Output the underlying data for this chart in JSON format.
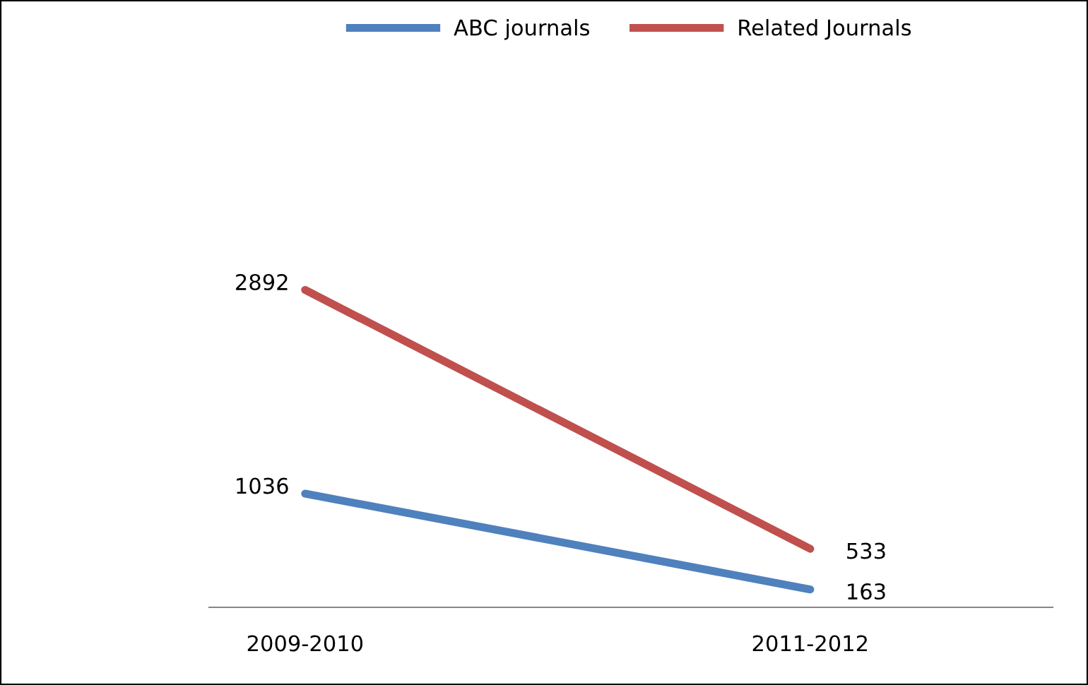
{
  "chart_data": {
    "type": "line",
    "categories": [
      "2009-2010",
      "2011-2012"
    ],
    "series": [
      {
        "name": "ABC journals",
        "color": "#4f81bd",
        "values": [
          1036,
          163
        ]
      },
      {
        "name": "Related Journals",
        "color": "#c0504d",
        "values": [
          2892,
          533
        ]
      }
    ],
    "tick_labels": "x",
    "data_labels": true,
    "legend": "top",
    "grid": false,
    "marker": "none",
    "line_style": "solid"
  }
}
